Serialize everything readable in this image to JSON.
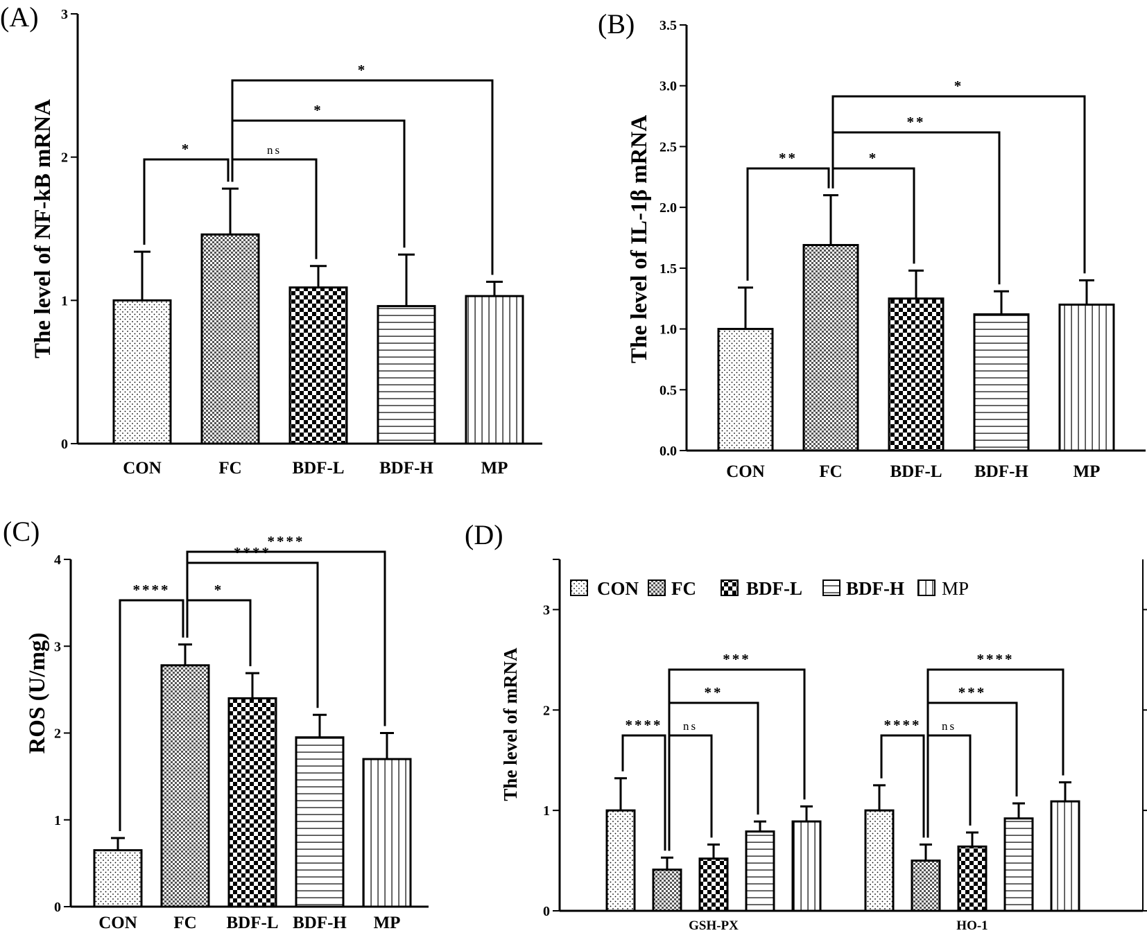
{
  "patterns": [
    {
      "id": "dots",
      "name": "CON"
    },
    {
      "id": "finecheck",
      "name": "FC"
    },
    {
      "id": "check",
      "name": "BDF-L"
    },
    {
      "id": "hlines",
      "name": "BDF-H"
    },
    {
      "id": "vlines",
      "name": "MP"
    }
  ],
  "colors": {
    "ink": "#000000",
    "background": "#ffffff"
  },
  "chart_data": [
    {
      "panel": "(A)",
      "type": "bar",
      "ylabel": "The level of NF-kB mRNA",
      "categories": [
        "CON",
        "FC",
        "BDF-L",
        "BDF-H",
        "MP"
      ],
      "values": [
        1.0,
        1.46,
        1.09,
        0.96,
        1.03
      ],
      "errors": [
        0.34,
        0.32,
        0.15,
        0.36,
        0.1
      ],
      "ylim": [
        0,
        3
      ],
      "yticks": [
        0,
        1,
        2,
        3
      ],
      "significance": [
        {
          "from": 0,
          "to": 1,
          "label": "*"
        },
        {
          "from": 1,
          "to": 2,
          "label": "ns"
        },
        {
          "from": 1,
          "to": 3,
          "label": "*"
        },
        {
          "from": 1,
          "to": 4,
          "label": "*"
        }
      ]
    },
    {
      "panel": "(B)",
      "type": "bar",
      "ylabel": "The level of IL-1β mRNA",
      "categories": [
        "CON",
        "FC",
        "BDF-L",
        "BDF-H",
        "MP"
      ],
      "values": [
        1.0,
        1.69,
        1.25,
        1.12,
        1.2
      ],
      "errors": [
        0.34,
        0.41,
        0.23,
        0.19,
        0.2
      ],
      "ylim": [
        0,
        3.5
      ],
      "yticks": [
        "0.0",
        "0.5",
        "1.0",
        "1.5",
        "2.0",
        "2.5",
        "3.0",
        "3.5"
      ],
      "significance": [
        {
          "from": 0,
          "to": 1,
          "label": "**"
        },
        {
          "from": 1,
          "to": 2,
          "label": "*"
        },
        {
          "from": 1,
          "to": 3,
          "label": "**"
        },
        {
          "from": 1,
          "to": 4,
          "label": "*"
        }
      ]
    },
    {
      "panel": "(C)",
      "type": "bar",
      "ylabel": "ROS (U/mg)",
      "categories": [
        "CON",
        "FC",
        "BDF-L",
        "BDF-H",
        "MP"
      ],
      "values": [
        0.65,
        2.78,
        2.4,
        1.95,
        1.7
      ],
      "errors": [
        0.14,
        0.24,
        0.29,
        0.26,
        0.3
      ],
      "ylim": [
        0,
        4
      ],
      "yticks": [
        0,
        1,
        2,
        3,
        4
      ],
      "significance": [
        {
          "from": 0,
          "to": 1,
          "label": "****"
        },
        {
          "from": 1,
          "to": 2,
          "label": "*"
        },
        {
          "from": 1,
          "to": 3,
          "label": "****"
        },
        {
          "from": 1,
          "to": 4,
          "label": "****"
        }
      ]
    },
    {
      "panel": "(D)",
      "type": "bar",
      "ylabel": "The level of  mRNA",
      "groups": [
        "GSH-PX",
        "HO-1"
      ],
      "legend": [
        "CON",
        "FC",
        "BDF-L",
        "BDF-H",
        "MP"
      ],
      "series": [
        {
          "name": "CON",
          "values": [
            1.0,
            1.0
          ],
          "errors": [
            0.32,
            0.25
          ]
        },
        {
          "name": "FC",
          "values": [
            0.41,
            0.5
          ],
          "errors": [
            0.12,
            0.16
          ]
        },
        {
          "name": "BDF-L",
          "values": [
            0.52,
            0.64
          ],
          "errors": [
            0.14,
            0.14
          ]
        },
        {
          "name": "BDF-H",
          "values": [
            0.79,
            0.92
          ],
          "errors": [
            0.1,
            0.15
          ]
        },
        {
          "name": "MP",
          "values": [
            0.89,
            1.09
          ],
          "errors": [
            0.15,
            0.19
          ]
        }
      ],
      "ylim": [
        0,
        3.5
      ],
      "yticks": [
        0,
        1,
        2,
        3
      ],
      "significance": [
        {
          "group": 0,
          "from": 0,
          "to": 1,
          "label": "****"
        },
        {
          "group": 0,
          "from": 1,
          "to": 2,
          "label": "ns"
        },
        {
          "group": 0,
          "from": 1,
          "to": 3,
          "label": "**"
        },
        {
          "group": 0,
          "from": 1,
          "to": 4,
          "label": "***"
        },
        {
          "group": 1,
          "from": 0,
          "to": 1,
          "label": "****"
        },
        {
          "group": 1,
          "from": 1,
          "to": 2,
          "label": "ns"
        },
        {
          "group": 1,
          "from": 1,
          "to": 3,
          "label": "***"
        },
        {
          "group": 1,
          "from": 1,
          "to": 4,
          "label": "****"
        }
      ]
    }
  ]
}
